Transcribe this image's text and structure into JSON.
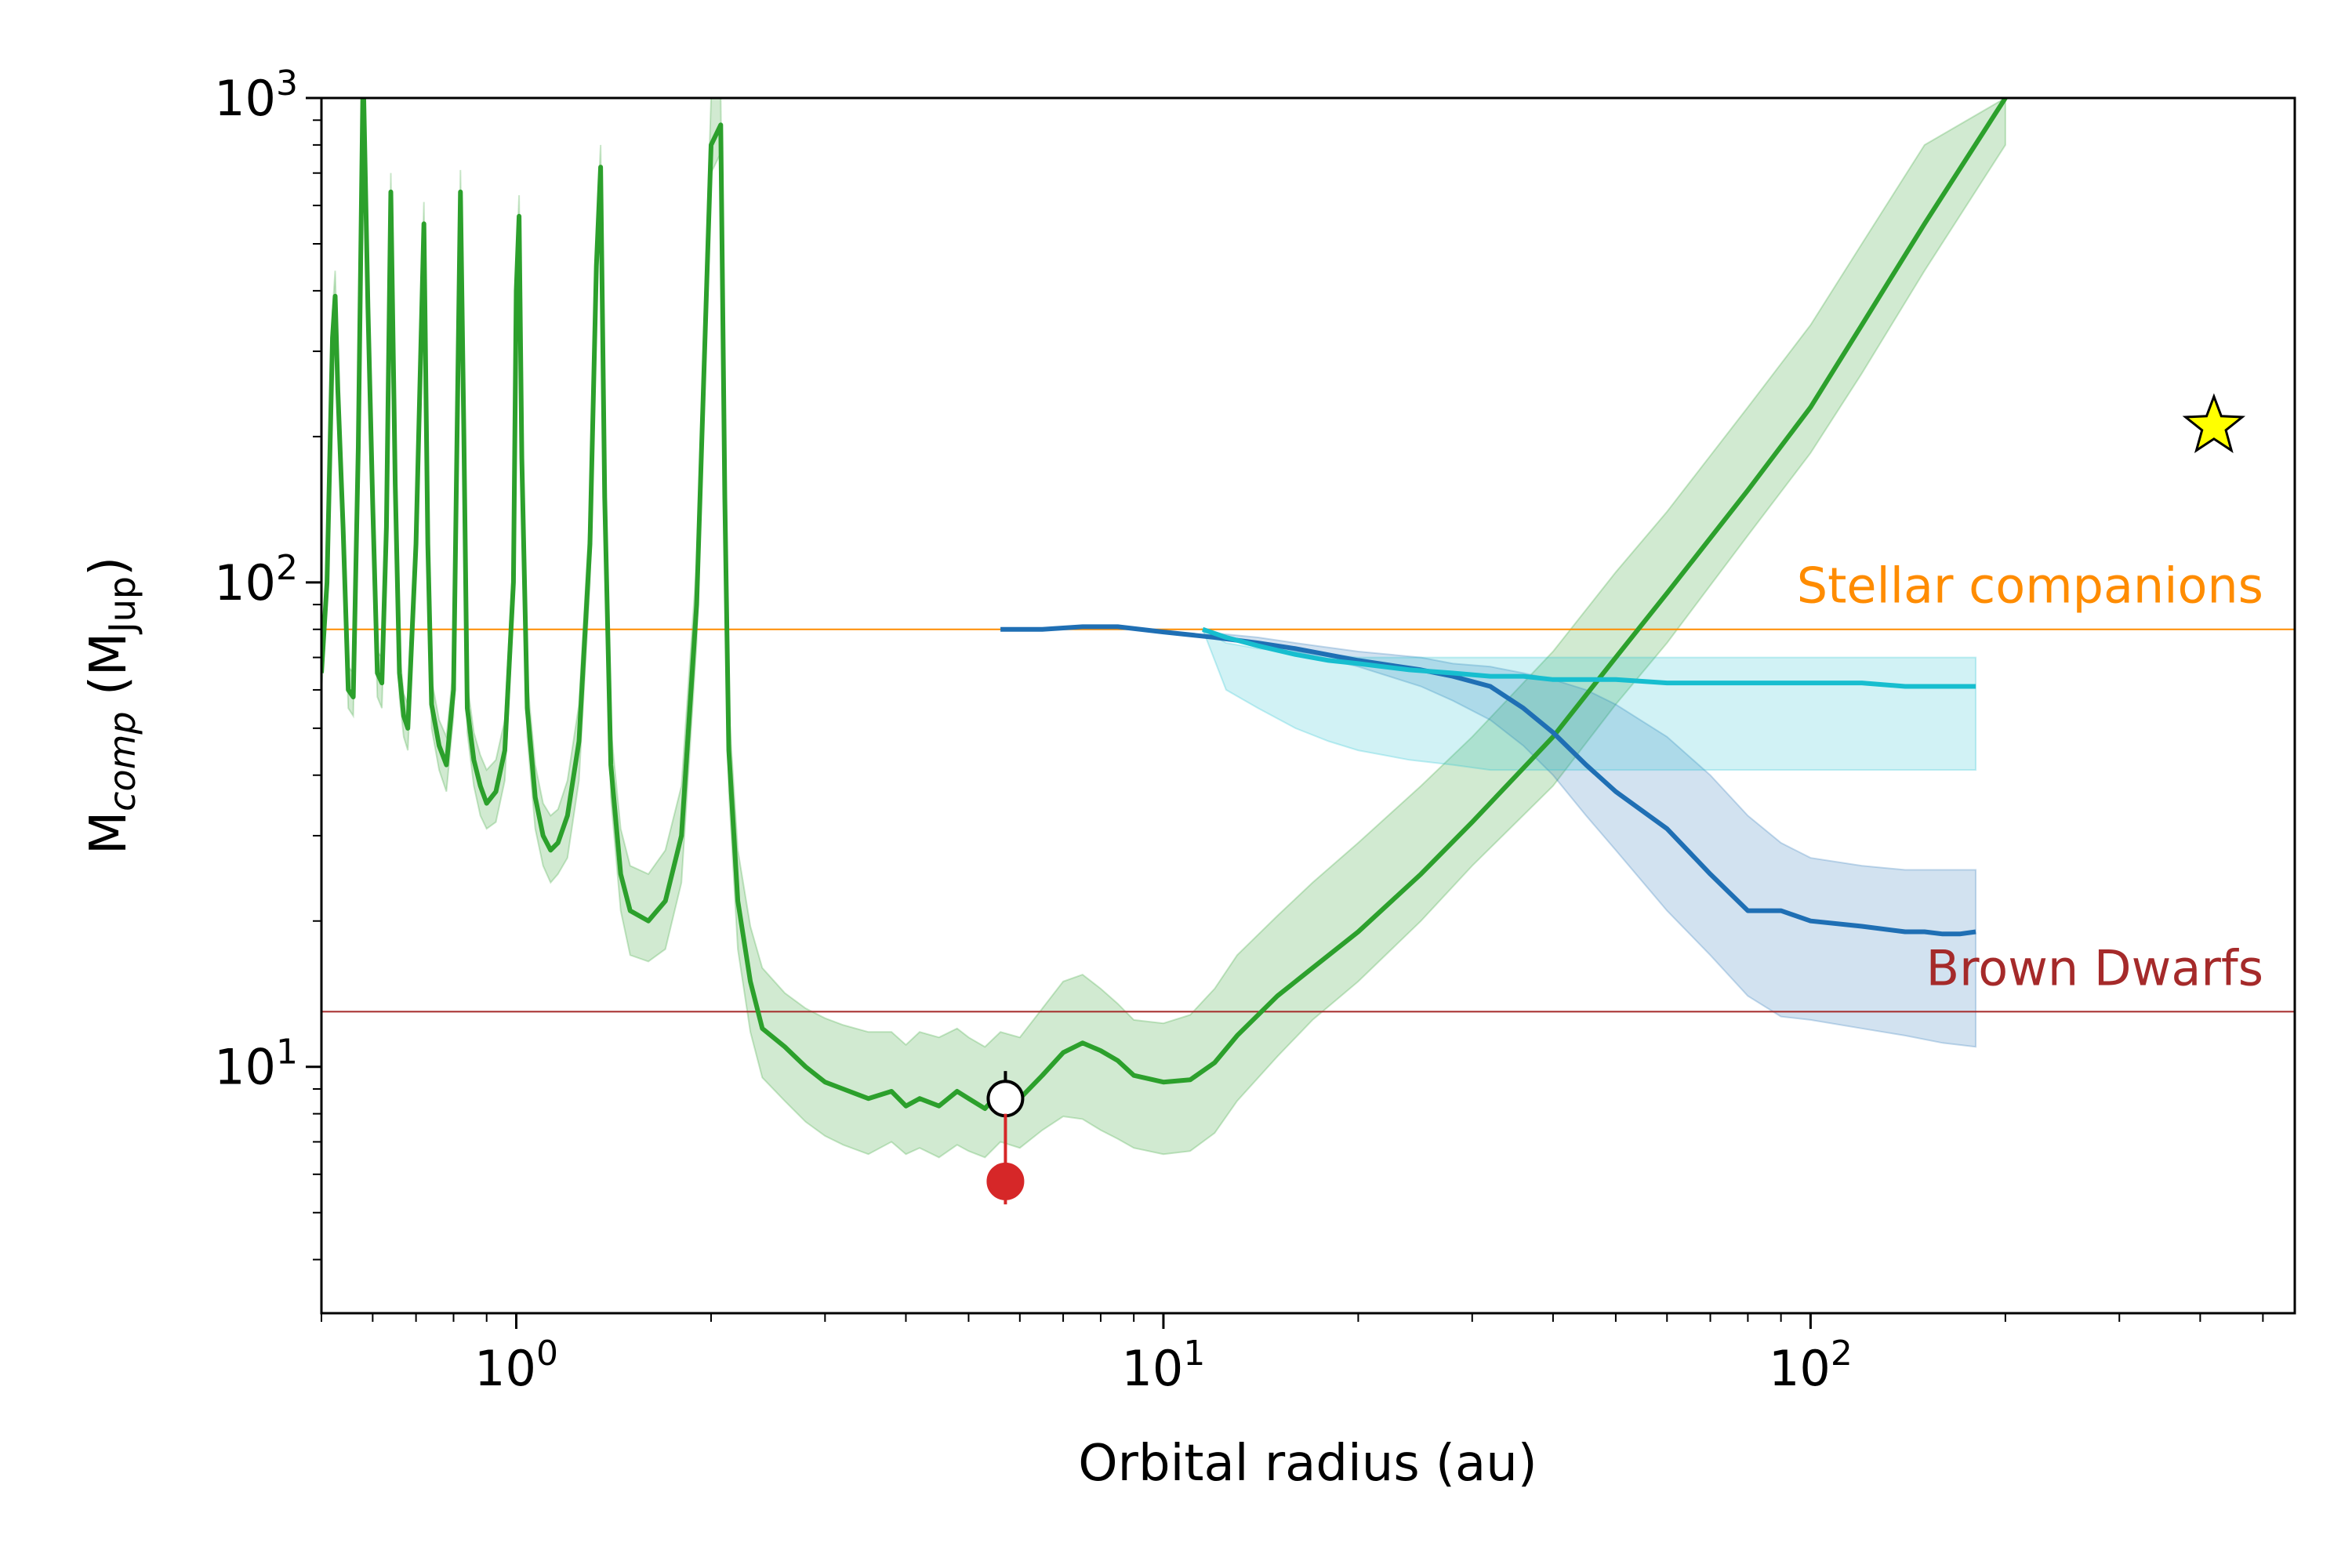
{
  "chart_data": {
    "type": "line",
    "xlabel": "Orbital radius (au)",
    "ylabel": {
      "base": "M",
      "sub": "comp",
      "unit_base": "M",
      "unit_sub": "Jup"
    },
    "xscale": "log",
    "yscale": "log",
    "xlim": [
      0.5,
      560
    ],
    "ylim": [
      3.1,
      1000
    ],
    "x_ticks": [
      {
        "value": 1,
        "base": "10",
        "exp": "0"
      },
      {
        "value": 10,
        "base": "10",
        "exp": "1"
      },
      {
        "value": 100,
        "base": "10",
        "exp": "2"
      }
    ],
    "y_ticks": [
      {
        "value": 10,
        "base": "10",
        "exp": "1"
      },
      {
        "value": 100,
        "base": "10",
        "exp": "2"
      },
      {
        "value": 1000,
        "base": "10",
        "exp": "3"
      }
    ],
    "reference_lines": [
      {
        "label": "Stellar companions",
        "y": 80,
        "color": "#ff8c00"
      },
      {
        "label": "Brown Dwarfs",
        "y": 13,
        "color": "#a52a2a"
      }
    ],
    "series": [
      {
        "key": "green",
        "color": "#2ca02c",
        "x": [
          0.5,
          0.51,
          0.52,
          0.525,
          0.53,
          0.54,
          0.55,
          0.56,
          0.57,
          0.58,
          0.59,
          0.6,
          0.61,
          0.62,
          0.63,
          0.64,
          0.65,
          0.66,
          0.67,
          0.68,
          0.7,
          0.72,
          0.73,
          0.74,
          0.76,
          0.78,
          0.8,
          0.82,
          0.83,
          0.84,
          0.86,
          0.88,
          0.9,
          0.93,
          0.96,
          0.99,
          1.0,
          1.01,
          1.02,
          1.04,
          1.07,
          1.1,
          1.13,
          1.16,
          1.2,
          1.25,
          1.3,
          1.33,
          1.35,
          1.37,
          1.4,
          1.45,
          1.5,
          1.6,
          1.7,
          1.8,
          1.9,
          2.0,
          2.07,
          2.1,
          2.13,
          2.2,
          2.3,
          2.4,
          2.6,
          2.8,
          3.0,
          3.2,
          3.5,
          3.8,
          4.0,
          4.2,
          4.5,
          4.8,
          5.0,
          5.3,
          5.6,
          6.0,
          6.5,
          7.0,
          7.5,
          8.0,
          8.5,
          9.0,
          10,
          11,
          12,
          13,
          15,
          17,
          20,
          25,
          30,
          40,
          50,
          60,
          80,
          100,
          120,
          150,
          200
        ],
        "y": [
          65,
          100,
          320,
          390,
          250,
          130,
          60,
          58,
          190,
          1150,
          370,
          145,
          65,
          62,
          130,
          640,
          160,
          65,
          53,
          50,
          120,
          550,
          120,
          56,
          46,
          42,
          60,
          640,
          200,
          55,
          43,
          38,
          35,
          37,
          45,
          100,
          400,
          570,
          180,
          55,
          36,
          30,
          28,
          29,
          33,
          47,
          120,
          450,
          720,
          150,
          42,
          25,
          21,
          20,
          22,
          30,
          90,
          800,
          880,
          150,
          45,
          22,
          15,
          12,
          11,
          10,
          9.3,
          9.0,
          8.6,
          8.9,
          8.3,
          8.6,
          8.3,
          8.9,
          8.6,
          8.2,
          8.9,
          8.6,
          9.6,
          10.7,
          11.2,
          10.8,
          10.3,
          9.6,
          9.3,
          9.4,
          10.2,
          11.6,
          14,
          16,
          19,
          25,
          32,
          48,
          70,
          95,
          155,
          230,
          340,
          550,
          1000
        ],
        "band_lower": [
          60,
          90,
          290,
          350,
          230,
          120,
          55,
          53,
          170,
          1000,
          330,
          130,
          58,
          55,
          115,
          580,
          145,
          58,
          48,
          45,
          108,
          500,
          108,
          50,
          41,
          37,
          53,
          580,
          180,
          49,
          38,
          33,
          31,
          32,
          39,
          88,
          360,
          510,
          160,
          48,
          31,
          26,
          24,
          25,
          27,
          39,
          100,
          400,
          640,
          130,
          36,
          21,
          17,
          16.5,
          17.5,
          24,
          75,
          700,
          770,
          130,
          37,
          17.5,
          11.8,
          9.5,
          8.5,
          7.7,
          7.2,
          6.9,
          6.6,
          7.0,
          6.6,
          6.8,
          6.5,
          6.9,
          6.7,
          6.5,
          7.0,
          6.8,
          7.4,
          7.9,
          7.8,
          7.4,
          7.1,
          6.8,
          6.6,
          6.7,
          7.3,
          8.5,
          10.5,
          12.5,
          15,
          20,
          26,
          38,
          56,
          75,
          125,
          185,
          270,
          440,
          800
        ],
        "band_upper": [
          72,
          110,
          360,
          440,
          280,
          145,
          67,
          65,
          210,
          1150,
          410,
          160,
          72,
          70,
          145,
          700,
          178,
          72,
          59,
          56,
          134,
          610,
          133,
          63,
          52,
          48,
          67,
          710,
          225,
          62,
          49,
          44,
          41,
          43,
          52,
          115,
          440,
          630,
          200,
          63,
          42,
          35,
          33,
          34,
          39,
          56,
          140,
          500,
          800,
          170,
          50,
          31,
          26,
          25,
          28,
          38,
          110,
          1000,
          1000,
          175,
          55,
          28,
          19.5,
          16,
          14.2,
          13.2,
          12.6,
          12.2,
          11.8,
          11.8,
          11.1,
          11.8,
          11.5,
          12.0,
          11.5,
          11.0,
          11.8,
          11.5,
          13.2,
          15,
          15.5,
          14.5,
          13.5,
          12.5,
          12.3,
          12.8,
          14.5,
          17,
          20.5,
          24,
          29,
          38,
          48,
          72,
          105,
          140,
          230,
          340,
          500,
          800,
          1000
        ]
      },
      {
        "key": "blue",
        "color": "#1f6fb4",
        "x": [
          5.6,
          6.5,
          7.5,
          8.5,
          10,
          12,
          14,
          16,
          20,
          25,
          28,
          32,
          36,
          40,
          45,
          50,
          60,
          70,
          80,
          90,
          100,
          120,
          140,
          150,
          160,
          170,
          180
        ],
        "y": [
          80,
          80,
          81,
          81,
          79,
          77,
          75,
          73,
          69,
          66,
          64,
          61,
          55,
          49,
          42,
          37,
          31,
          25,
          21,
          21,
          20,
          19.5,
          19,
          19,
          18.8,
          18.8,
          19
        ],
        "band_lower": [
          null,
          null,
          null,
          null,
          null,
          null,
          null,
          null,
          null,
          null,
          null,
          null,
          null,
          null,
          null,
          null,
          null,
          null,
          null,
          null,
          null,
          null,
          null,
          null,
          null,
          null,
          null
        ],
        "band_upper": [
          null,
          null,
          null,
          null,
          null,
          null,
          null,
          null,
          null,
          null,
          null,
          null,
          null,
          null,
          null,
          null,
          null,
          null,
          null,
          null,
          null,
          null,
          null,
          null,
          null,
          null,
          null
        ]
      },
      {
        "key": "blue-band",
        "color": "#1f6fb4",
        "x": [
          11.5,
          14,
          16,
          20,
          25,
          28,
          32,
          36,
          40,
          45,
          50,
          60,
          70,
          80,
          90,
          100,
          120,
          140,
          160,
          180
        ],
        "y": [
          null,
          null,
          null,
          null,
          null,
          null,
          null,
          null,
          null,
          null,
          null,
          null,
          null,
          null,
          null,
          null,
          null,
          null,
          null,
          null
        ],
        "band_lower": [
          79,
          75,
          72,
          67,
          61,
          57,
          52,
          46,
          40,
          33,
          28,
          21,
          17,
          14,
          12.7,
          12.5,
          12,
          11.6,
          11.2,
          11.0
        ],
        "band_upper": [
          79,
          77,
          75,
          72,
          70,
          68,
          67,
          65,
          63,
          60,
          56,
          48,
          40,
          33,
          29,
          27,
          26,
          25.5,
          25.5,
          25.5
        ]
      },
      {
        "key": "cyan",
        "color": "#17becf",
        "x": [
          11.5,
          12.5,
          14,
          16,
          18,
          20,
          24,
          28,
          32,
          36,
          40,
          50,
          60,
          70,
          80,
          100,
          120,
          140,
          160,
          180
        ],
        "y": [
          80,
          77,
          74,
          71,
          69,
          68,
          66,
          65,
          64,
          64,
          63,
          63,
          62,
          62,
          62,
          62,
          62,
          61,
          61,
          61
        ],
        "band_lower": [
          80,
          60,
          55,
          50,
          47,
          45,
          43,
          42,
          41,
          41,
          41,
          41,
          41,
          41,
          41,
          41,
          41,
          41,
          41,
          41
        ],
        "band_upper": [
          80,
          75,
          73,
          72,
          71,
          70,
          70,
          70,
          70,
          70,
          70,
          70,
          70,
          70,
          70,
          70,
          70,
          70,
          70,
          70
        ]
      }
    ],
    "points": [
      {
        "key": "open-circle",
        "x": 5.7,
        "y": 8.6,
        "err_up": 9.8,
        "fill": "#ffffff",
        "stroke": "#000000"
      },
      {
        "key": "red-dot",
        "x": 5.7,
        "y": 5.8,
        "err_up": 8.0,
        "err_down": 5.2,
        "fill": "#d62728",
        "stroke": "#d62728"
      },
      {
        "key": "star",
        "x": 420,
        "y": 210,
        "fill": "#ffff00",
        "stroke": "#000000"
      }
    ]
  }
}
